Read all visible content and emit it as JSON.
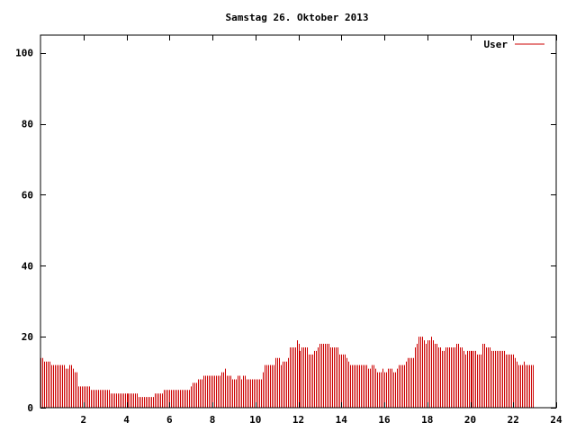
{
  "chart_data": {
    "type": "bar",
    "title": "Samstag 26. Oktober 2013",
    "xlabel": "",
    "ylabel": "",
    "xlim": [
      0,
      24
    ],
    "ylim": [
      0,
      105
    ],
    "x_ticks": [
      "2",
      "4",
      "6",
      "8",
      "10",
      "12",
      "14",
      "16",
      "18",
      "20",
      "22",
      "24"
    ],
    "y_ticks": [
      "0",
      "20",
      "40",
      "60",
      "80",
      "100"
    ],
    "grid": false,
    "legend_position": "top-right",
    "bar_color": "#cc0000",
    "sample_interval_minutes": 5,
    "series": [
      {
        "name": "User",
        "values": [
          14,
          14,
          13,
          13,
          13,
          13,
          12,
          12,
          12,
          12,
          12,
          12,
          12,
          12,
          11,
          11,
          12,
          12,
          11,
          10,
          10,
          6,
          6,
          6,
          6,
          6,
          6,
          6,
          5,
          5,
          5,
          5,
          5,
          5,
          5,
          5,
          5,
          5,
          5,
          4,
          4,
          4,
          4,
          4,
          4,
          4,
          4,
          4,
          4,
          4,
          4,
          4,
          4,
          4,
          4,
          3,
          3,
          3,
          3,
          3,
          3,
          3,
          3,
          3,
          4,
          4,
          4,
          4,
          4,
          5,
          5,
          5,
          5,
          5,
          5,
          5,
          5,
          5,
          5,
          5,
          5,
          5,
          5,
          5,
          6,
          7,
          7,
          7,
          8,
          8,
          8,
          9,
          9,
          9,
          9,
          9,
          9,
          9,
          9,
          9,
          9,
          10,
          10,
          11,
          9,
          9,
          9,
          8,
          8,
          8,
          9,
          9,
          8,
          9,
          9,
          8,
          8,
          8,
          8,
          8,
          8,
          8,
          8,
          8,
          10,
          12,
          12,
          12,
          12,
          12,
          12,
          14,
          14,
          14,
          12,
          13,
          13,
          13,
          14,
          17,
          17,
          17,
          17,
          19,
          18,
          16,
          17,
          17,
          17,
          17,
          15,
          15,
          15,
          16,
          16,
          17,
          18,
          18,
          18,
          18,
          18,
          18,
          17,
          17,
          17,
          17,
          17,
          15,
          15,
          15,
          15,
          14,
          13,
          12,
          12,
          12,
          12,
          12,
          12,
          12,
          12,
          12,
          12,
          11,
          11,
          12,
          12,
          11,
          10,
          10,
          10,
          11,
          10,
          10,
          11,
          11,
          11,
          10,
          10,
          11,
          12,
          12,
          12,
          12,
          13,
          14,
          14,
          14,
          14,
          17,
          18,
          20,
          20,
          20,
          19,
          18,
          19,
          19,
          20,
          19,
          18,
          18,
          17,
          17,
          16,
          16,
          17,
          17,
          17,
          17,
          17,
          17,
          18,
          18,
          17,
          17,
          16,
          15,
          16,
          16,
          16,
          16,
          16,
          16,
          15,
          15,
          15,
          18,
          18,
          17,
          17,
          17,
          16,
          16,
          16,
          16,
          16,
          16,
          16,
          16,
          15,
          15,
          15,
          15,
          15,
          14,
          13,
          12,
          12,
          12,
          13,
          12,
          12,
          12,
          12,
          12
        ]
      }
    ]
  }
}
